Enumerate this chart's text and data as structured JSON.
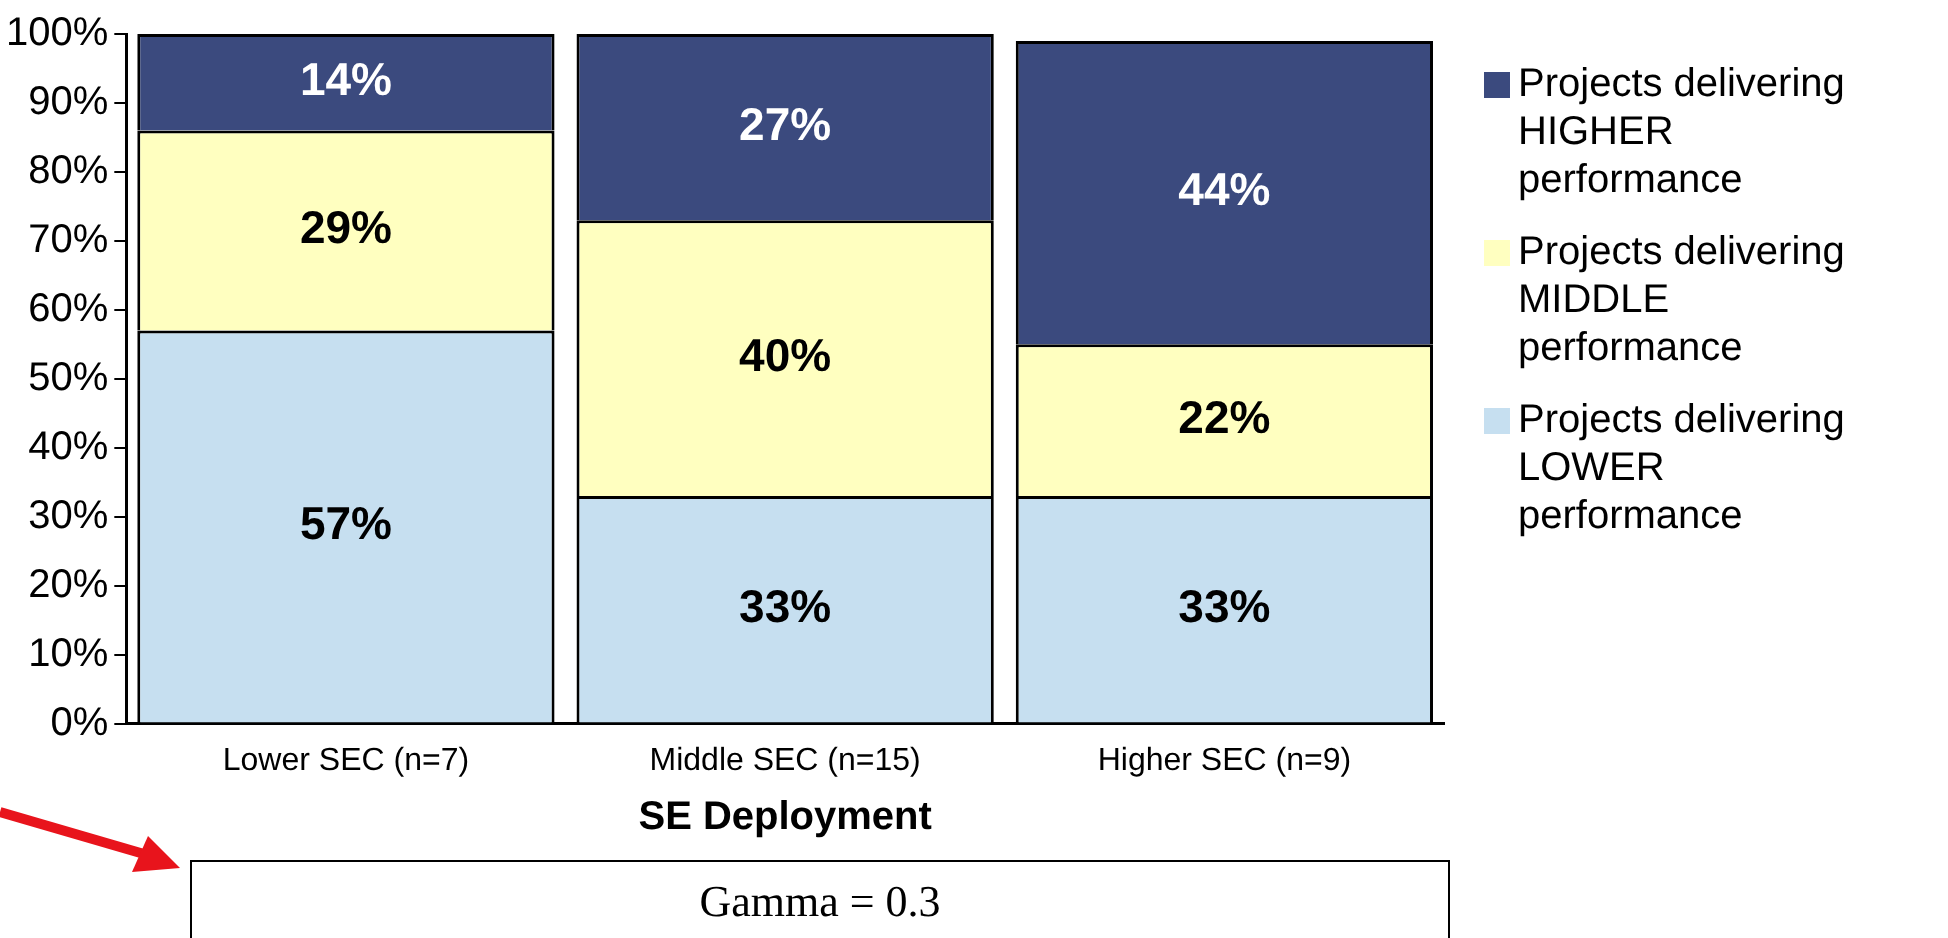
{
  "chart_data": {
    "type": "bar",
    "stacked": true,
    "xlabel": "SE Deployment",
    "categories": [
      "Lower SEC (n=7)",
      "Middle SEC (n=15)",
      "Higher SEC (n=9)"
    ],
    "series": [
      {
        "name": "Projects delivering LOWER performance",
        "color": "#c6dff0",
        "values": [
          57,
          33,
          33
        ],
        "value_labels": [
          "57%",
          "33%",
          "33%"
        ]
      },
      {
        "name": "Projects delivering MIDDLE performance",
        "color": "#ffffc0",
        "values": [
          29,
          40,
          22
        ],
        "value_labels": [
          "29%",
          "40%",
          "22%"
        ]
      },
      {
        "name": "Projects delivering HIGHER performance",
        "color": "#3b4a7e",
        "values": [
          14,
          27,
          44
        ],
        "value_labels": [
          "14%",
          "27%",
          "44%"
        ]
      }
    ],
    "ylim": [
      0,
      100
    ],
    "yticks": [
      {
        "value": 0,
        "label": "0%"
      },
      {
        "value": 10,
        "label": "10%"
      },
      {
        "value": 20,
        "label": "20%"
      },
      {
        "value": 30,
        "label": "30%"
      },
      {
        "value": 40,
        "label": "40%"
      },
      {
        "value": 50,
        "label": "50%"
      },
      {
        "value": 60,
        "label": "60%"
      },
      {
        "value": 70,
        "label": "70%"
      },
      {
        "value": 80,
        "label": "80%"
      },
      {
        "value": 90,
        "label": "90%"
      },
      {
        "value": 100,
        "label": "100%"
      }
    ],
    "grid": false,
    "legend": "right",
    "annotations": [
      "Gamma = 0.3"
    ]
  }
}
